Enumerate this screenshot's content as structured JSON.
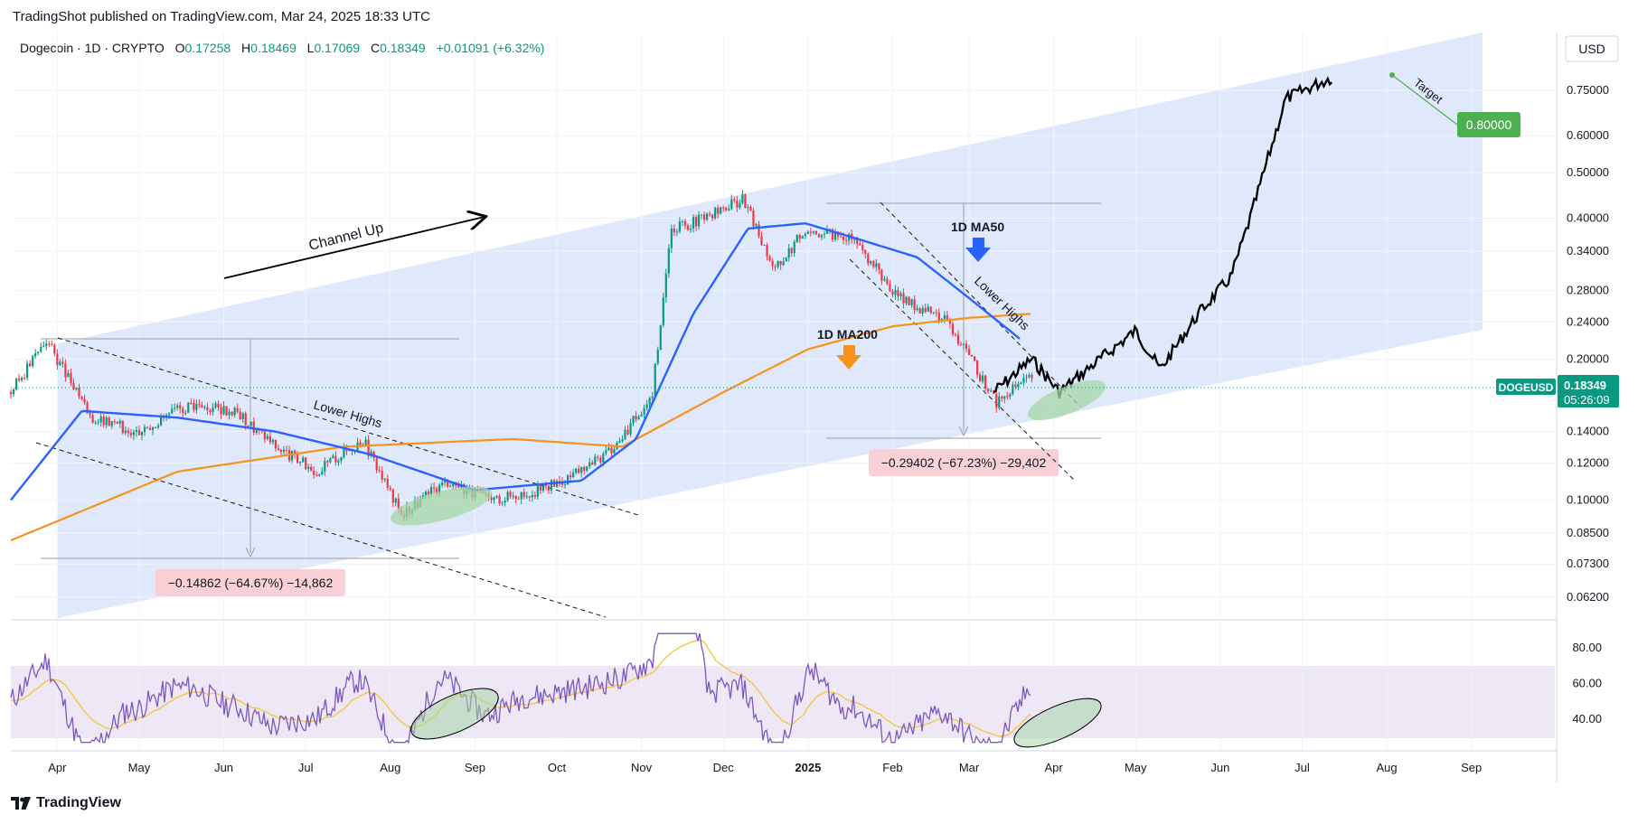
{
  "header": {
    "publisher": "TradingShot published on TradingView.com, Mar 24, 2025 18:33 UTC",
    "symbol": "Dogecoin · 1D · CRYPTO",
    "o_label": "O",
    "o": "0.17258",
    "h_label": "H",
    "h": "0.18469",
    "l_label": "L",
    "l": "0.17069",
    "c_label": "C",
    "c": "0.18349",
    "change": "+0.01091 (+6.32%)"
  },
  "currency": "USD",
  "price_tag": {
    "symbol": "DOGEUSD",
    "price": "0.18349",
    "countdown": "05:26:09"
  },
  "target_tag": "0.80000",
  "footer": {
    "brand": "TradingView"
  },
  "colors": {
    "channel_fill": "#dbe5fb",
    "ma50": "#2962ff",
    "ma200": "#f7931a",
    "projection": "#000000",
    "bull": "#089981",
    "bear": "#f23645",
    "rsi_line": "#7e57c2",
    "rsi_ma": "#f5c842",
    "rsi_band": "#ede7f6",
    "ellipse": "#a5d6a7",
    "measure_box": "#f8d0d6",
    "target_green": "#4caf50"
  },
  "chart_data": {
    "type": "line",
    "title": "Dogecoin · 1D · CRYPTO",
    "scale": "log",
    "ylim": [
      0.062,
      0.85
    ],
    "y_ticks": [
      "0.75000",
      "0.60000",
      "0.50000",
      "0.40000",
      "0.34000",
      "0.28000",
      "0.24000",
      "0.20000",
      "0.14000",
      "0.12000",
      "0.10000",
      "0.08500",
      "0.07300",
      "0.06200"
    ],
    "x_ticks": [
      "Apr",
      "May",
      "Jun",
      "Jul",
      "Aug",
      "Sep",
      "Oct",
      "Nov",
      "Dec",
      "2025",
      "Feb",
      "Mar",
      "Apr",
      "May",
      "Jun",
      "Jul",
      "Aug",
      "Sep"
    ],
    "rsi_ticks": [
      "80.00",
      "60.00",
      "40.00"
    ],
    "series": [
      {
        "name": "",
        "role": "price",
        "x": [
          "2024-03-15",
          "2024-03-28",
          "2024-04-13",
          "2024-04-30",
          "2024-05-20",
          "2024-06-05",
          "2024-06-20",
          "2024-07-05",
          "2024-07-22",
          "2024-08-05",
          "2024-08-22",
          "2024-09-06",
          "2024-09-25",
          "2024-10-10",
          "2024-10-25",
          "2024-11-05",
          "2024-11-12",
          "2024-11-25",
          "2024-12-08",
          "2024-12-20",
          "2024-12-31",
          "2025-01-18",
          "2025-02-03",
          "2025-02-20",
          "2025-03-11",
          "2025-03-24"
        ],
        "values": [
          0.17,
          0.22,
          0.15,
          0.14,
          0.16,
          0.155,
          0.13,
          0.115,
          0.135,
          0.093,
          0.11,
          0.1,
          0.105,
          0.115,
          0.135,
          0.17,
          0.38,
          0.4,
          0.44,
          0.31,
          0.38,
          0.36,
          0.27,
          0.245,
          0.162,
          0.18349
        ]
      },
      {
        "name": "1D MA50",
        "role": "ma50",
        "x": [
          "2024-03-15",
          "2024-04-10",
          "2024-05-15",
          "2024-06-20",
          "2024-07-25",
          "2024-09-01",
          "2024-10-10",
          "2024-10-30",
          "2024-11-20",
          "2024-12-10",
          "2024-12-31",
          "2025-01-20",
          "2025-02-10",
          "2025-03-01",
          "2025-03-20"
        ],
        "values": [
          0.1,
          0.155,
          0.15,
          0.14,
          0.125,
          0.105,
          0.11,
          0.135,
          0.25,
          0.38,
          0.39,
          0.36,
          0.33,
          0.27,
          0.22
        ]
      },
      {
        "name": "1D MA200",
        "role": "ma200",
        "x": [
          "2024-03-15",
          "2024-05-15",
          "2024-07-15",
          "2024-09-15",
          "2024-10-25",
          "2024-12-01",
          "2025-01-01",
          "2025-02-01",
          "2025-03-01",
          "2025-03-24"
        ],
        "values": [
          0.082,
          0.115,
          0.13,
          0.135,
          0.13,
          0.17,
          0.21,
          0.235,
          0.245,
          0.25
        ]
      },
      {
        "name": "",
        "role": "projection",
        "x": [
          "2025-03-10",
          "2025-03-24",
          "2025-04-03",
          "2025-04-18",
          "2025-05-01",
          "2025-05-10",
          "2025-05-24",
          "2025-06-05",
          "2025-06-12",
          "2025-06-25",
          "2025-07-12"
        ],
        "values": [
          0.17,
          0.2,
          0.17,
          0.2,
          0.23,
          0.19,
          0.25,
          0.3,
          0.4,
          0.72,
          0.8
        ]
      }
    ],
    "annotations": [
      {
        "text": "Channel Up"
      },
      {
        "text": "Lower Highs"
      },
      {
        "text": "Lower Highs"
      },
      {
        "text": "1D MA50"
      },
      {
        "text": "1D MA200"
      },
      {
        "text": "Target"
      },
      {
        "text": "−0.14862 (−64.67%) −14,862"
      },
      {
        "text": "−0.29402 (−67.23%) −29,402"
      }
    ]
  }
}
